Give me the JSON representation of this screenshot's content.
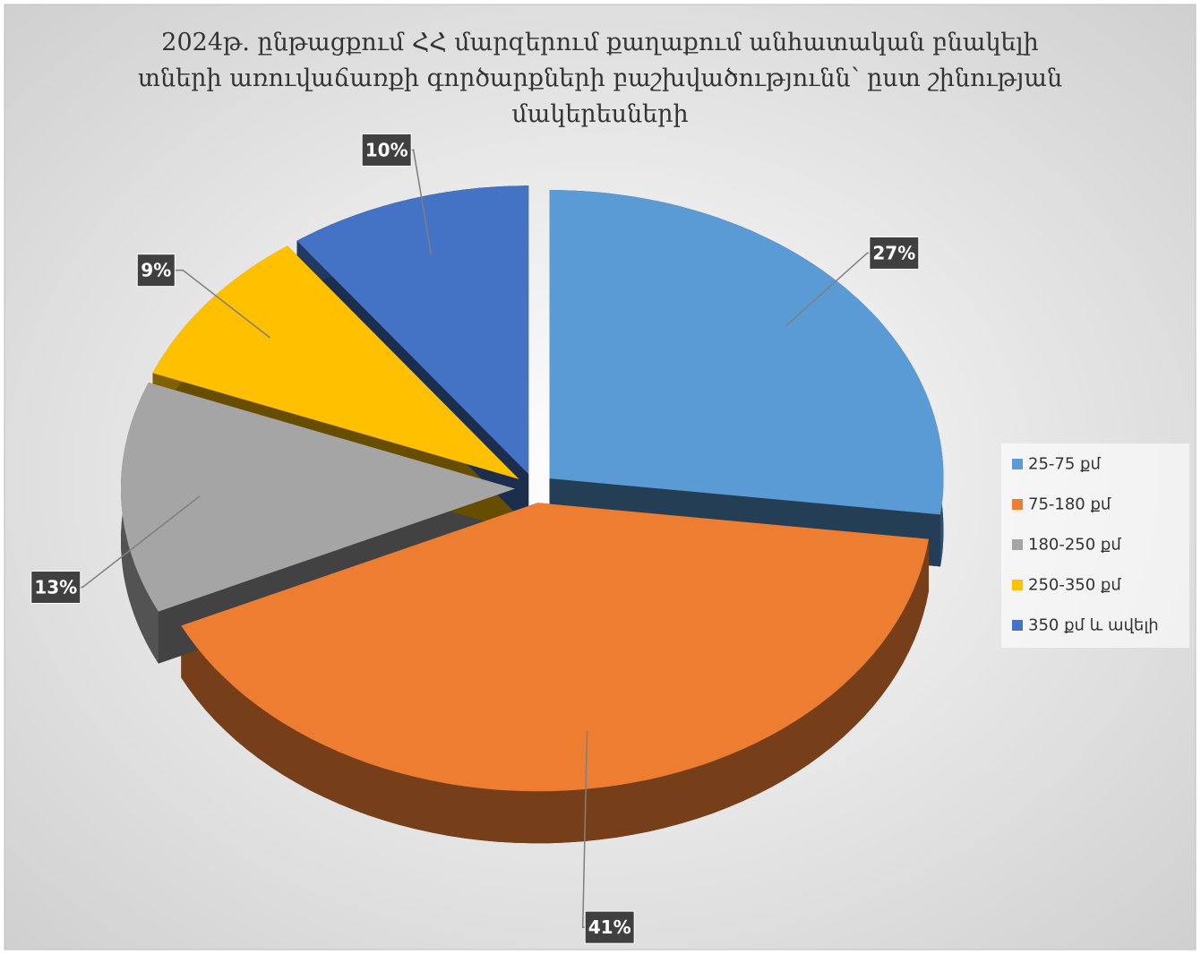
{
  "chart_data": {
    "type": "pie",
    "title": "2024թ. ընթացքում ՀՀ մարզերում քաղաքում անհատական բնակելի տների առուվաճառքի գործարքների բաշխվածությունն՝ ըստ  շինության մակերեսների",
    "categories": [
      "25-75 քմ",
      "75-180 քմ",
      "180-250 քմ",
      "250-350 քմ",
      "350 քմ և ավելի"
    ],
    "values": [
      27,
      41,
      13,
      9,
      10
    ],
    "value_labels": [
      "27%",
      "41%",
      "13%",
      "9%",
      "10%"
    ],
    "colors": [
      "#5b9bd5",
      "#ed7d31",
      "#a5a5a5",
      "#ffc000",
      "#4472c4"
    ],
    "legend": "right"
  }
}
